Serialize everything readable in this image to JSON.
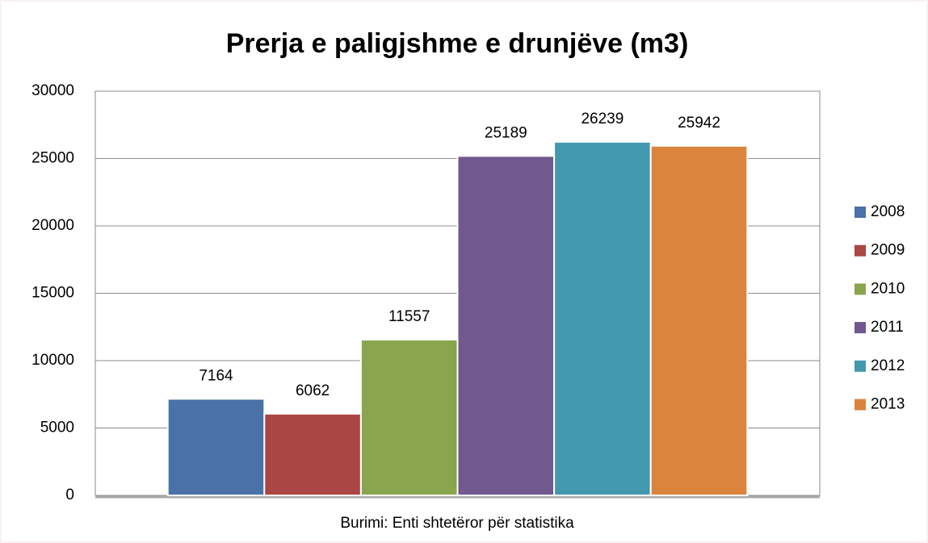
{
  "chart_data": {
    "type": "bar",
    "title": "Prerja e paligjshme e drunjëve (m3)",
    "xlabel": "Burimi: Enti shtetëror për statistika",
    "categories": [
      null
    ],
    "series": [
      {
        "name": "2008",
        "color": "#4a71a8",
        "values": [
          7164
        ]
      },
      {
        "name": "2009",
        "color": "#aa4643",
        "values": [
          6062
        ]
      },
      {
        "name": "2010",
        "color": "#89a54e",
        "values": [
          11557
        ]
      },
      {
        "name": "2011",
        "color": "#71588f",
        "values": [
          25189
        ]
      },
      {
        "name": "2012",
        "color": "#4198af",
        "values": [
          26239
        ]
      },
      {
        "name": "2013",
        "color": "#db843d",
        "values": [
          25942
        ]
      }
    ],
    "ylim": [
      0,
      30000
    ],
    "yticks": [
      0,
      5000,
      10000,
      15000,
      20000,
      25000,
      30000
    ],
    "grid": true,
    "legend": "right"
  }
}
